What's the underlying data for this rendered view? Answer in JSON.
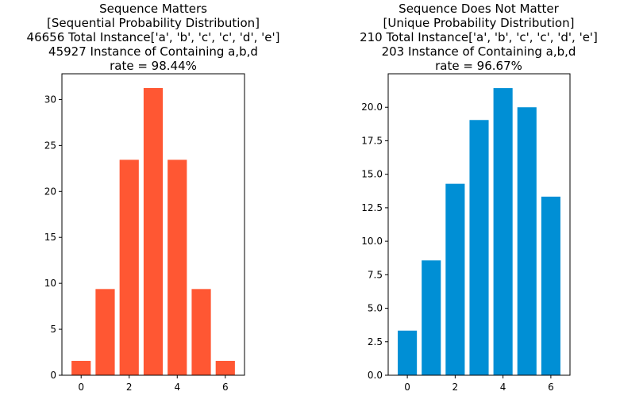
{
  "chart_data": [
    {
      "type": "bar",
      "title_lines": [
        "Sequence Matters",
        "[Sequential Probability Distribution]",
        "46656 Total Instance['a', 'b', 'c', 'c', 'd', 'e']",
        "45927 Instance of Containing a,b,d",
        "rate = 98.44%"
      ],
      "x": [
        0,
        1,
        2,
        3,
        4,
        5,
        6
      ],
      "values": [
        1.56,
        9.38,
        23.44,
        31.25,
        23.44,
        9.38,
        1.56
      ],
      "xlim": [
        -0.8,
        6.8
      ],
      "ylim": [
        0,
        32.8
      ],
      "xticks": [
        0,
        2,
        4,
        6
      ],
      "yticks": [
        0,
        5,
        10,
        15,
        20,
        25,
        30
      ],
      "ytick_labels": [
        "0",
        "5",
        "10",
        "15",
        "20",
        "25",
        "30"
      ],
      "color": "#ff5733",
      "grid": false,
      "xlabel": "",
      "ylabel": ""
    },
    {
      "type": "bar",
      "title_lines": [
        "Sequence Does Not Matter",
        "[Unique Probability Distribution]",
        "210 Total Instance['a', 'b', 'c', 'c', 'd', 'e']",
        "203 Instance of Containing a,b,d",
        "rate = 96.67%"
      ],
      "x": [
        0,
        1,
        2,
        3,
        4,
        5,
        6
      ],
      "values": [
        3.33,
        8.57,
        14.29,
        19.05,
        21.43,
        20.0,
        13.33
      ],
      "xlim": [
        -0.8,
        6.8
      ],
      "ylim": [
        0,
        22.5
      ],
      "xticks": [
        0,
        2,
        4,
        6
      ],
      "yticks": [
        0,
        2.5,
        5.0,
        7.5,
        10.0,
        12.5,
        15.0,
        17.5,
        20.0
      ],
      "ytick_labels": [
        "0.0",
        "2.5",
        "5.0",
        "7.5",
        "10.0",
        "12.5",
        "15.0",
        "17.5",
        "20.0"
      ],
      "color": "#008fd5",
      "grid": false,
      "xlabel": "",
      "ylabel": ""
    }
  ]
}
